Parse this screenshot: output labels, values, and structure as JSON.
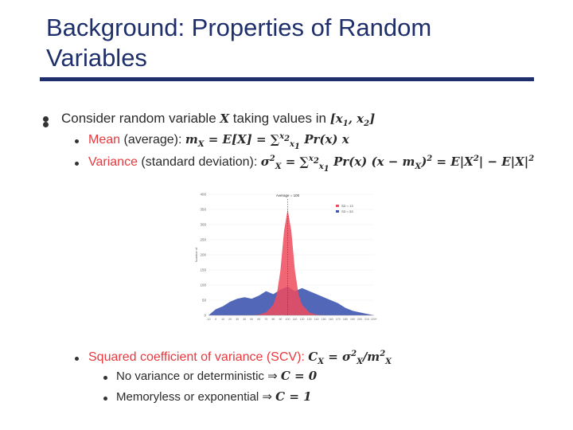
{
  "slide": {
    "title_line1": "Background: Properties of Random",
    "title_line2": "Variables"
  },
  "bullets": {
    "b1_text": "Consider random variable",
    "b1_var": "X",
    "b1_mid": "taking values in",
    "b1_range": "[x",
    "mean_label": "Mean",
    "mean_paren": "(average):",
    "mean_formula": "m",
    "var_label": "Variance",
    "var_paren": "(standard deviation):",
    "scv_label": "Squared coefficient of variance (SCV):",
    "scv_formula": "C",
    "novar_text": "No variance or deterministic",
    "novar_arrow": "⇒",
    "novar_eq": "C = 0",
    "memory_text": "Memoryless or exponential",
    "memory_eq": "C = 1"
  },
  "chart_data": {
    "type": "area",
    "title": "Average = 100",
    "legend": [
      "SD = 13",
      "SD = 53"
    ],
    "legend_position": "top-right",
    "ylabel": "Number of",
    "ylim": [
      0,
      400
    ],
    "yticks": [
      "0",
      "50",
      "100",
      "150",
      "200",
      "250",
      "300",
      "350",
      "400"
    ],
    "colors": {
      "SD = 13": "#ef4b5c",
      "SD = 53": "#3f57b0"
    },
    "series": [
      {
        "name": "SD = 13",
        "x": [
          50,
          60,
          70,
          80,
          85,
          90,
          95,
          100,
          105,
          110,
          115,
          120,
          130,
          140,
          150
        ],
        "values": [
          0,
          2,
          10,
          35,
          70,
          150,
          280,
          350,
          280,
          150,
          70,
          35,
          10,
          2,
          0
        ]
      },
      {
        "name": "SD = 53",
        "x": [
          -10,
          0,
          10,
          20,
          30,
          40,
          50,
          60,
          70,
          80,
          90,
          100,
          110,
          120,
          130,
          140,
          150,
          160,
          170,
          180,
          190,
          200,
          210,
          220
        ],
        "values": [
          0,
          20,
          30,
          45,
          55,
          60,
          55,
          65,
          80,
          70,
          85,
          95,
          80,
          90,
          80,
          70,
          60,
          50,
          40,
          25,
          15,
          10,
          5,
          0
        ]
      }
    ]
  }
}
